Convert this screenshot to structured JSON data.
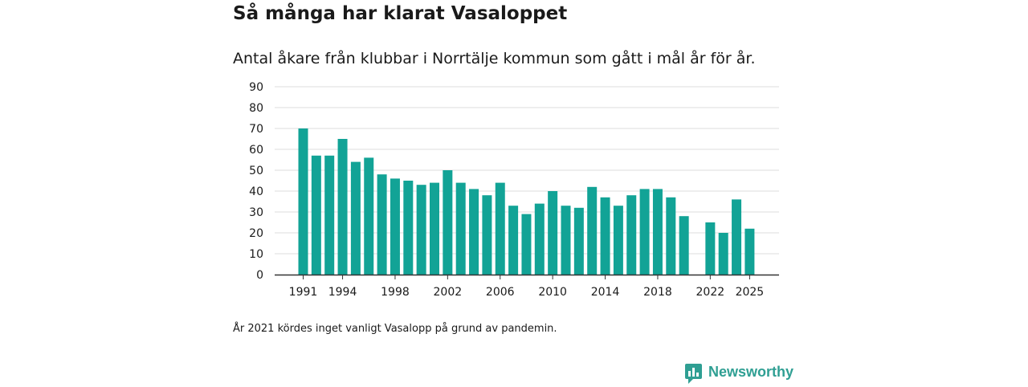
{
  "header": {
    "title": "Så många har klarat Vasaloppet",
    "subtitle": "Antal åkare från klubbar i Norrtälje kommun som gått i mål år för år."
  },
  "footnote": "År 2021 kördes inget vanligt Vasalopp på grund av pandemin.",
  "brand": {
    "name": "Newsworthy",
    "icon": "newsworthy-logo-icon",
    "color": "#2f9f93"
  },
  "colors": {
    "bar": "#12a396",
    "grid": "#dddddd",
    "axis": "#333333"
  },
  "chart_data": {
    "type": "bar",
    "title": "Så många har klarat Vasaloppet",
    "subtitle": "Antal åkare från klubbar i Norrtälje kommun som gått i mål år för år.",
    "xlabel": "",
    "ylabel": "",
    "ylim": [
      0,
      90
    ],
    "yticks": [
      0,
      10,
      20,
      30,
      40,
      50,
      60,
      70,
      80,
      90
    ],
    "xticks": [
      1991,
      1994,
      1998,
      2002,
      2006,
      2010,
      2014,
      2018,
      2022,
      2025
    ],
    "grid": true,
    "categories": [
      1991,
      1992,
      1993,
      1994,
      1995,
      1996,
      1997,
      1998,
      1999,
      2000,
      2001,
      2002,
      2003,
      2004,
      2005,
      2006,
      2007,
      2008,
      2009,
      2010,
      2011,
      2012,
      2013,
      2014,
      2015,
      2016,
      2017,
      2018,
      2019,
      2020,
      2021,
      2022,
      2023,
      2024,
      2025
    ],
    "values": [
      70,
      57,
      57,
      65,
      54,
      56,
      48,
      46,
      45,
      43,
      44,
      50,
      44,
      41,
      38,
      44,
      33,
      29,
      34,
      40,
      33,
      32,
      42,
      37,
      33,
      38,
      41,
      41,
      37,
      28,
      null,
      25,
      20,
      36,
      22
    ]
  }
}
